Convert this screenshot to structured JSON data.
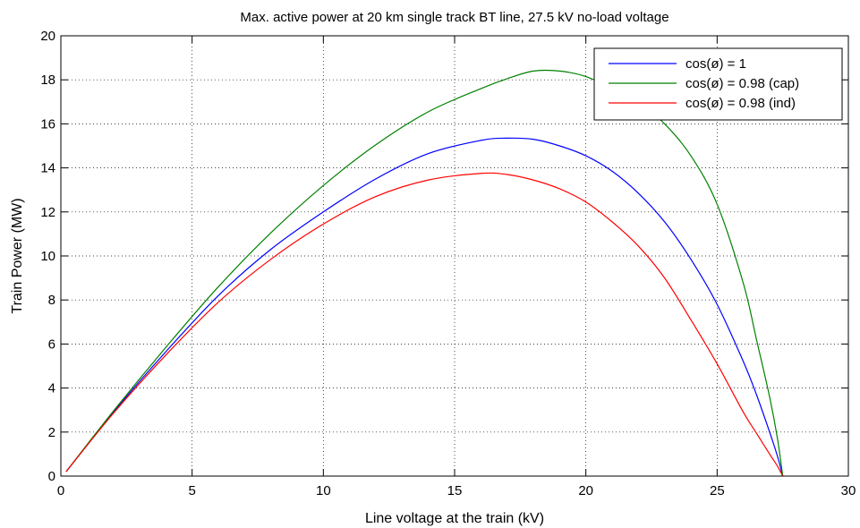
{
  "chart_data": {
    "type": "line",
    "title": "Max. active power at 20 km single track BT line, 27.5 kV no-load voltage",
    "xlabel": "Line voltage at the train (kV)",
    "ylabel": "Train Power (MW)",
    "xlim": [
      0,
      30
    ],
    "ylim": [
      0,
      20
    ],
    "xticks": [
      0,
      5,
      10,
      15,
      20,
      25,
      30
    ],
    "yticks": [
      0,
      2,
      4,
      6,
      8,
      10,
      12,
      14,
      16,
      18,
      20
    ],
    "grid": true,
    "legend_position": "top-right",
    "x": [
      0.2,
      2,
      4,
      6,
      8,
      10,
      12,
      14,
      16,
      17,
      18,
      19,
      20,
      21,
      22,
      23,
      24,
      25,
      26,
      26.5,
      27,
      27.3,
      27.5
    ],
    "series": [
      {
        "name": "cos(ø) = 1",
        "color": "#0000ff",
        "values": [
          0.2,
          2.9,
          5.65,
          8.2,
          10.3,
          12.0,
          13.5,
          14.65,
          15.25,
          15.35,
          15.3,
          15.0,
          14.55,
          13.85,
          12.85,
          11.55,
          9.85,
          7.8,
          5.2,
          3.7,
          2.0,
          0.9,
          0.0
        ]
      },
      {
        "name": "cos(ø) = 0.98 (cap)",
        "color": "#008000",
        "values": [
          0.2,
          2.95,
          5.85,
          8.6,
          11.05,
          13.2,
          15.05,
          16.55,
          17.6,
          18.05,
          18.4,
          18.4,
          18.15,
          17.6,
          16.95,
          16.0,
          14.55,
          12.35,
          8.75,
          6.2,
          3.6,
          1.7,
          0.0
        ]
      },
      {
        "name": "cos(ø) = 0.98 (ind)",
        "color": "#ff0000",
        "values": [
          0.2,
          2.85,
          5.5,
          7.9,
          9.85,
          11.45,
          12.7,
          13.45,
          13.75,
          13.7,
          13.45,
          13.05,
          12.45,
          11.55,
          10.45,
          9.0,
          7.1,
          5.1,
          2.9,
          1.95,
          1.0,
          0.45,
          0.0
        ]
      }
    ]
  }
}
